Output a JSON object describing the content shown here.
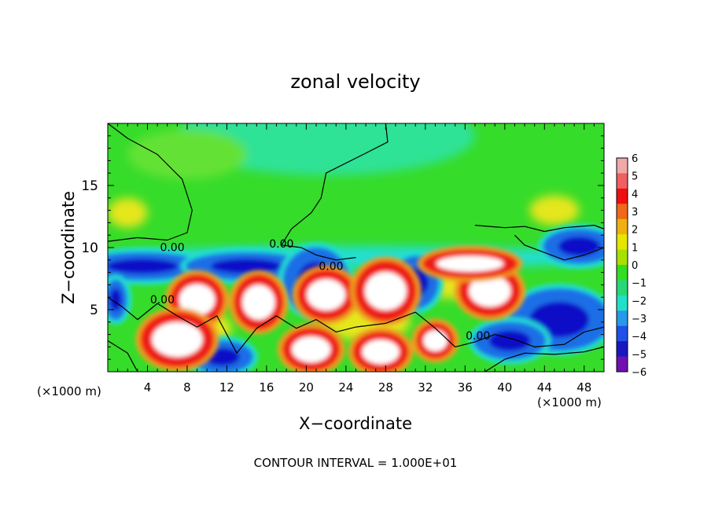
{
  "chart_data": {
    "type": "heatmap",
    "title": "zonal velocity",
    "xlabel": "X−coordinate",
    "ylabel": "Z−coordinate",
    "x_unit_left": "(×1000 m)",
    "x_unit_right": "(×1000 m)",
    "footer": "CONTOUR INTERVAL = 1.000E+01",
    "xlim": [
      0,
      50
    ],
    "ylim": [
      0,
      20
    ],
    "x_ticks": [
      4,
      8,
      12,
      16,
      20,
      24,
      28,
      32,
      36,
      40,
      44,
      48
    ],
    "x_tick_labels": [
      "4",
      "8",
      "12",
      "16",
      "20",
      "24",
      "28",
      "32",
      "36",
      "40",
      "44",
      "48"
    ],
    "y_ticks": [
      5,
      10,
      15
    ],
    "y_tick_labels": [
      "5",
      "10",
      "15"
    ],
    "contour_labels": [
      {
        "text": "0.00",
        "x": 6.5,
        "y": 9.7
      },
      {
        "text": "0.00",
        "x": 17.5,
        "y": 10.0
      },
      {
        "text": "0.00",
        "x": 22.5,
        "y": 8.2
      },
      {
        "text": "0.00",
        "x": 5.5,
        "y": 5.5
      },
      {
        "text": "0.00",
        "x": 37.3,
        "y": 2.6
      }
    ],
    "colorbar": {
      "levels": [
        "6",
        "5",
        "4",
        "3",
        "2",
        "1",
        "0",
        "−1",
        "−2",
        "−3",
        "−4",
        "−5",
        "−6"
      ],
      "colors": [
        "#f0a8a8",
        "#f06060",
        "#ee1010",
        "#f06818",
        "#f0b010",
        "#e6e600",
        "#a8e000",
        "#33dd22",
        "#28d878",
        "#20e0c8",
        "#2898e8",
        "#2050e8",
        "#1818c0",
        "#7010b0"
      ]
    },
    "field": {
      "colors": {
        "green": "#36dc2a",
        "light_green": "#64e236",
        "cyan_green": "#2ee296",
        "cyan": "#22dfd0",
        "blue": "#1a6ee6",
        "dark_blue": "#1010c8",
        "yellow": "#e6e61e",
        "orange": "#f0a020",
        "red": "#ee1e12",
        "white": "#ffffff"
      },
      "warm_blobs": [
        {
          "x": 9.0,
          "y": 5.8,
          "rx": 2.4,
          "ry": 1.8
        },
        {
          "x": 15.2,
          "y": 5.6,
          "rx": 2.2,
          "ry": 2.0
        },
        {
          "x": 22.0,
          "y": 6.2,
          "rx": 2.6,
          "ry": 1.8
        },
        {
          "x": 28.0,
          "y": 6.5,
          "rx": 2.8,
          "ry": 2.2
        },
        {
          "x": 38.5,
          "y": 6.5,
          "rx": 2.8,
          "ry": 1.8
        },
        {
          "x": 7.0,
          "y": 2.6,
          "rx": 3.4,
          "ry": 2.0
        },
        {
          "x": 20.5,
          "y": 1.8,
          "rx": 2.6,
          "ry": 1.5
        },
        {
          "x": 27.5,
          "y": 1.6,
          "rx": 2.5,
          "ry": 1.4
        },
        {
          "x": 33.0,
          "y": 2.5,
          "rx": 1.6,
          "ry": 1.2
        },
        {
          "x": 36.5,
          "y": 8.7,
          "rx": 4.5,
          "ry": 0.9
        }
      ],
      "cold_blobs": [
        {
          "x": 3.5,
          "y": 8.5,
          "rx": 6.0,
          "ry": 1.0
        },
        {
          "x": 14.0,
          "y": 8.5,
          "rx": 6.0,
          "ry": 1.0
        },
        {
          "x": 21.0,
          "y": 7.3,
          "rx": 3.2,
          "ry": 2.6
        },
        {
          "x": 31.0,
          "y": 7.2,
          "rx": 2.2,
          "ry": 2.0
        },
        {
          "x": 47.5,
          "y": 10.1,
          "rx": 3.5,
          "ry": 1.3
        },
        {
          "x": 45.5,
          "y": 4.2,
          "rx": 5.0,
          "ry": 2.4
        },
        {
          "x": 40.5,
          "y": 2.5,
          "rx": 3.5,
          "ry": 1.4
        },
        {
          "x": 11.5,
          "y": 1.2,
          "rx": 3.0,
          "ry": 1.2
        },
        {
          "x": 0.8,
          "y": 5.8,
          "rx": 1.0,
          "ry": 1.5
        }
      ],
      "yellow_blobs": [
        {
          "x": 2.0,
          "y": 12.8,
          "rx": 2.0,
          "ry": 1.2
        },
        {
          "x": 45.0,
          "y": 13.0,
          "rx": 2.5,
          "ry": 1.2
        },
        {
          "x": 35.0,
          "y": 7.5,
          "rx": 5.0,
          "ry": 1.6
        },
        {
          "x": 26.0,
          "y": 4.0,
          "rx": 4.5,
          "ry": 1.5
        },
        {
          "x": 10.5,
          "y": 3.5,
          "rx": 2.0,
          "ry": 1.2
        }
      ]
    }
  }
}
